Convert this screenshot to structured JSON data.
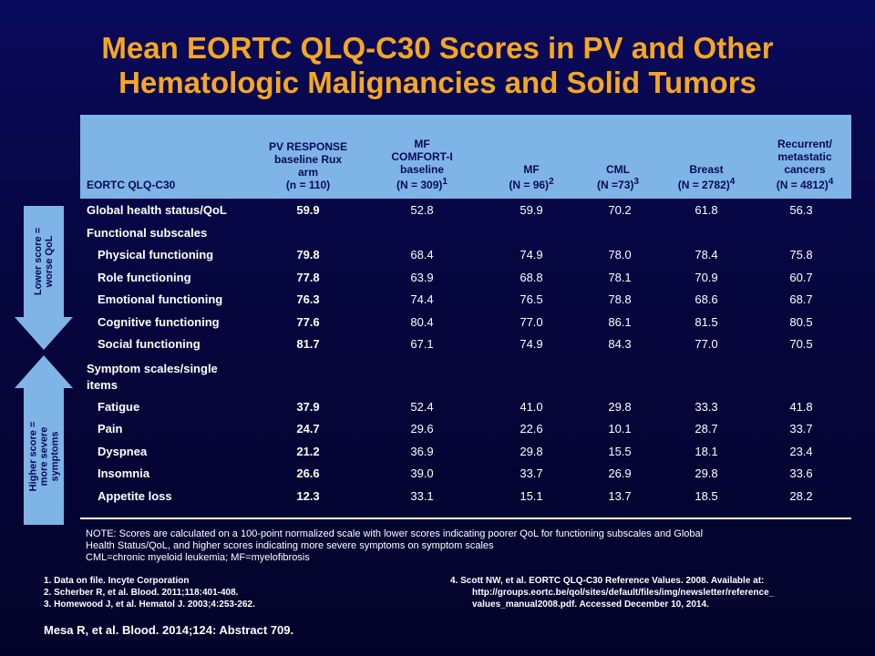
{
  "title": {
    "line1": "Mean EORTC QLQ-C30 Scores in PV and Other",
    "line2": "Hematologic Malignancies and Solid Tumors"
  },
  "arrows": {
    "top_label_1": "Lower score =",
    "top_label_2": "worse QoL",
    "bottom_label_1": "Higher score =",
    "bottom_label_2": "more severe",
    "bottom_label_3": "symptoms"
  },
  "table": {
    "headers": {
      "c0": "EORTC QLQ-C30",
      "c1_l1": "PV RESPONSE",
      "c1_l2": "baseline Rux",
      "c1_l3": "arm",
      "c1_l4": "(n = 110)",
      "c2_l1": "MF",
      "c2_l2": "COMFORT-I",
      "c2_l3": "baseline",
      "c2_l4": "(N = 309)",
      "c2_sup": "1",
      "c3_l1": "MF",
      "c3_l2": "(N = 96)",
      "c3_sup": "2",
      "c4_l1": "CML",
      "c4_l2": "(N  =73)",
      "c4_sup": "3",
      "c5_l1": "Breast",
      "c5_l2": "(N = 2782)",
      "c5_sup": "4",
      "c6_l1": "Recurrent/",
      "c6_l2": "metastatic",
      "c6_l3": "cancers",
      "c6_l4": "(N = 4812)",
      "c6_sup": "4"
    },
    "global": {
      "label": "Global health status/QoL",
      "values": [
        "59.9",
        "52.8",
        "59.9",
        "70.2",
        "61.8",
        "56.3"
      ]
    },
    "functional_header": "Functional subscales",
    "functional": [
      {
        "label": "Physical functioning",
        "values": [
          "79.8",
          "68.4",
          "74.9",
          "78.0",
          "78.4",
          "75.8"
        ]
      },
      {
        "label": "Role functioning",
        "values": [
          "77.8",
          "63.9",
          "68.8",
          "78.1",
          "70.9",
          "60.7"
        ]
      },
      {
        "label": "Emotional functioning",
        "values": [
          "76.3",
          "74.4",
          "76.5",
          "78.8",
          "68.6",
          "68.7"
        ]
      },
      {
        "label": "Cognitive functioning",
        "values": [
          "77.6",
          "80.4",
          "77.0",
          "86.1",
          "81.5",
          "80.5"
        ]
      },
      {
        "label": "Social functioning",
        "values": [
          "81.7",
          "67.1",
          "74.9",
          "84.3",
          "77.0",
          "70.5"
        ]
      }
    ],
    "symptom_header_l1": "Symptom  scales/single",
    "symptom_header_l2": "items",
    "symptoms": [
      {
        "label": "Fatigue",
        "values": [
          "37.9",
          "52.4",
          "41.0",
          "29.8",
          "33.3",
          "41.8"
        ]
      },
      {
        "label": "Pain",
        "values": [
          "24.7",
          "29.6",
          "22.6",
          "10.1",
          "28.7",
          "33.7"
        ]
      },
      {
        "label": "Dyspnea",
        "values": [
          "21.2",
          "36.9",
          "29.8",
          "15.5",
          "18.1",
          "23.4"
        ]
      },
      {
        "label": "Insomnia",
        "values": [
          "26.6",
          "39.0",
          "33.7",
          "26.9",
          "29.8",
          "33.6"
        ]
      },
      {
        "label": "Appetite loss",
        "values": [
          "12.3",
          "33.1",
          "15.1",
          "13.7",
          "18.5",
          "28.2"
        ]
      }
    ]
  },
  "note": {
    "line1": "NOTE: Scores are calculated on a 100-point normalized scale with lower scores indicating poorer QoL for functioning subscales and Global",
    "line2": "Health Status/QoL, and higher scores indicating more severe  symptoms on symptom scales",
    "line3": "CML=chronic myeloid leukemia; MF=myelofibrosis"
  },
  "references": {
    "r1": "1.    Data on file. Incyte Corporation",
    "r2": "2.    Scherber R, et al. Blood. 2011;118:401-408.",
    "r3": "3.    Homewood J, et al. Hematol J. 2003;4:253-262.",
    "r4_l1": "4.    Scott NW, et al. EORTC  QLQ-C30 Reference Values. 2008. Available at:",
    "r4_l2": "http://groups.eortc.be/qol/sites/default/files/img/newsletter/reference_",
    "r4_l3": "values_manual2008.pdf. Accessed December 10, 2014."
  },
  "citation": "Mesa R, et al. Blood. 2014;124: Abstract 709.",
  "colors": {
    "title": "#f5a623",
    "header_bg": "#7fb4e6",
    "background": "#06064a"
  }
}
